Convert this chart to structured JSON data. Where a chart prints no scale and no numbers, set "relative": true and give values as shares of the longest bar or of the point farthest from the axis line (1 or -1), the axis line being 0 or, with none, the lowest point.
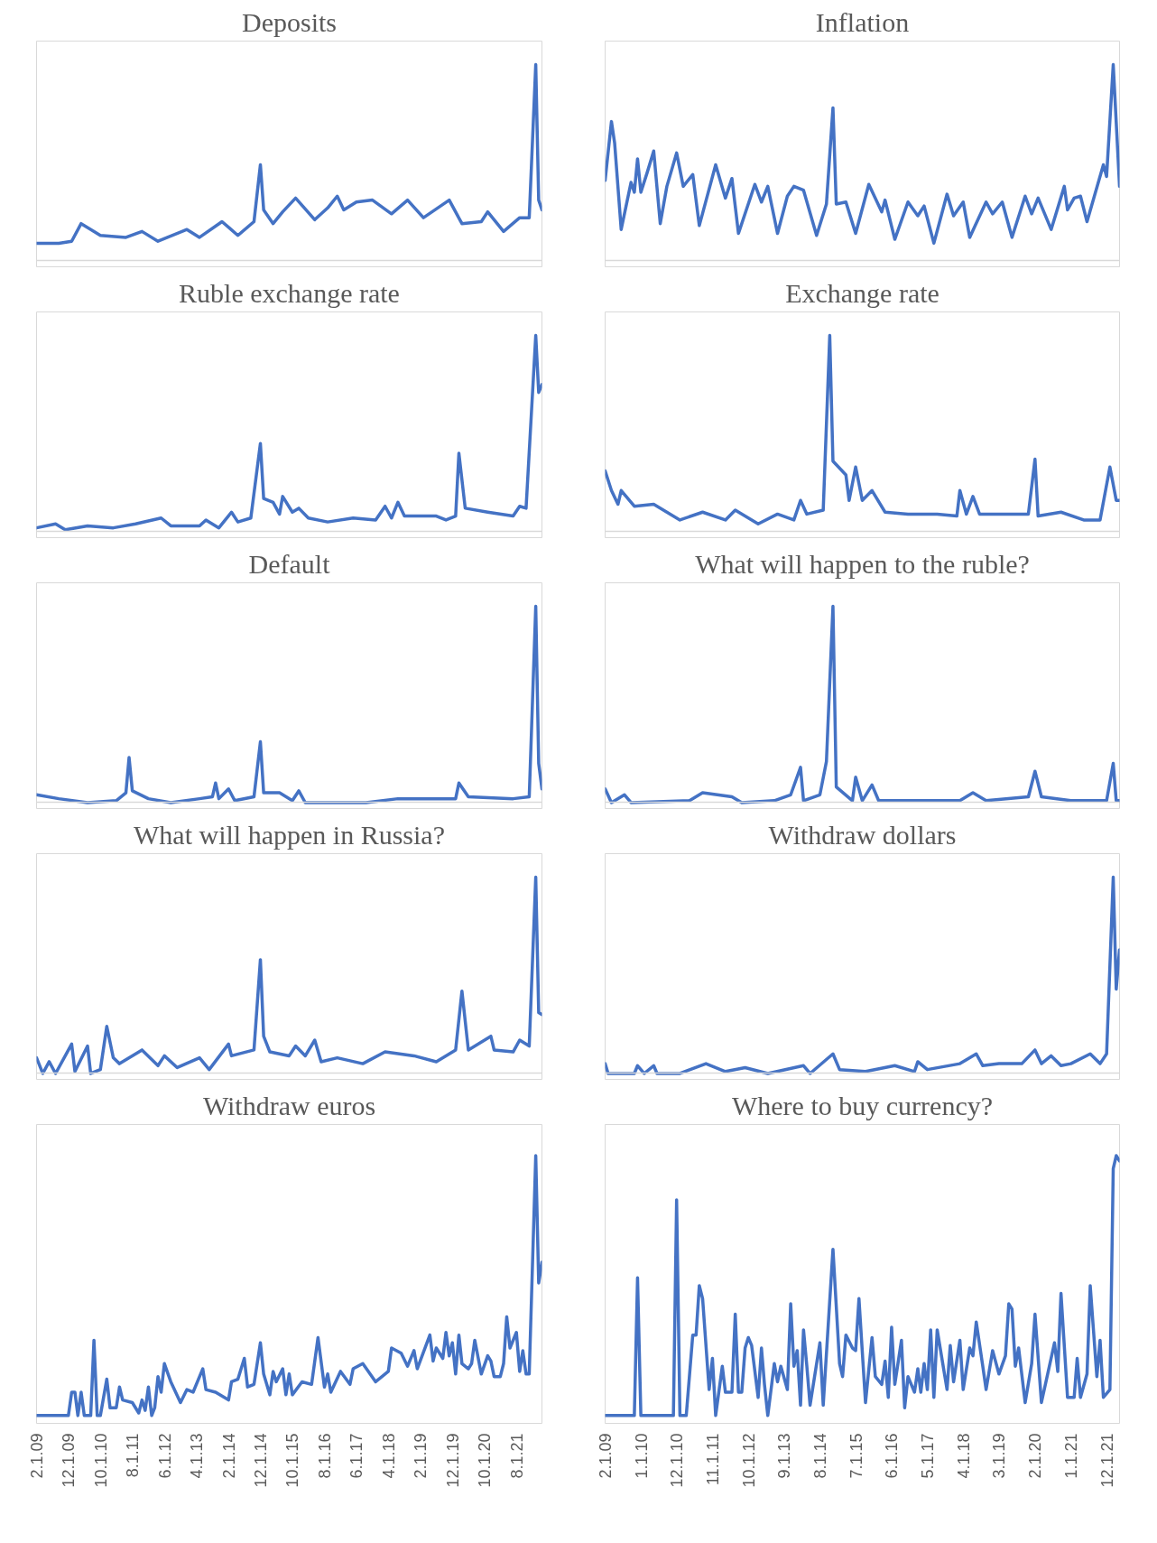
{
  "chart_data": [
    {
      "type": "line",
      "title": "Deposits",
      "relative": true,
      "tick_labels": false,
      "xlim": [
        "2009-02",
        "2022-04"
      ],
      "x": [
        "2009-02",
        "2009-09",
        "2010-01",
        "2010-04",
        "2010-10",
        "2011-06",
        "2011-11",
        "2012-04",
        "2013-01",
        "2013-05",
        "2013-12",
        "2014-05",
        "2014-10",
        "2014-12",
        "2015-01",
        "2015-04",
        "2015-07",
        "2015-11",
        "2016-05",
        "2016-09",
        "2016-12",
        "2017-02",
        "2017-06",
        "2017-11",
        "2018-05",
        "2018-10",
        "2019-03",
        "2019-11",
        "2020-03",
        "2020-09",
        "2020-11",
        "2021-04",
        "2021-09",
        "2021-12",
        "2022-02",
        "2022-03",
        "2022-04"
      ],
      "series": [
        {
          "color": "#4472c4",
          "values": [
            0.09,
            0.09,
            0.1,
            0.19,
            0.13,
            0.12,
            0.15,
            0.1,
            0.16,
            0.12,
            0.2,
            0.13,
            0.2,
            0.49,
            0.26,
            0.19,
            0.25,
            0.32,
            0.21,
            0.27,
            0.33,
            0.26,
            0.3,
            0.31,
            0.24,
            0.31,
            0.22,
            0.31,
            0.19,
            0.2,
            0.25,
            0.15,
            0.22,
            0.22,
            1.0,
            0.31,
            0.26
          ]
        }
      ]
    },
    {
      "type": "line",
      "title": "Inflation",
      "relative": true,
      "tick_labels": false,
      "xlim": [
        "2009-02",
        "2022-04"
      ],
      "x": [
        "2009-02",
        "2009-04",
        "2009-05",
        "2009-07",
        "2009-10",
        "2009-11",
        "2009-12",
        "2010-01",
        "2010-03",
        "2010-05",
        "2010-07",
        "2010-09",
        "2010-12",
        "2011-02",
        "2011-05",
        "2011-07",
        "2011-12",
        "2012-03",
        "2012-05",
        "2012-07",
        "2012-12",
        "2013-02",
        "2013-04",
        "2013-07",
        "2013-10",
        "2013-12",
        "2014-03",
        "2014-07",
        "2014-10",
        "2014-12",
        "2015-01",
        "2015-04",
        "2015-07",
        "2015-11",
        "2016-03",
        "2016-04",
        "2016-07",
        "2016-11",
        "2017-02",
        "2017-04",
        "2017-07",
        "2017-11",
        "2018-01",
        "2018-04",
        "2018-06",
        "2018-11",
        "2019-01",
        "2019-04",
        "2019-07",
        "2019-11",
        "2020-01",
        "2020-03",
        "2020-07",
        "2020-11",
        "2020-12",
        "2021-02",
        "2021-04",
        "2021-06",
        "2021-11",
        "2021-12",
        "2022-02",
        "2022-04"
      ],
      "series": [
        {
          "color": "#4472c4",
          "values": [
            0.41,
            0.71,
            0.6,
            0.16,
            0.4,
            0.35,
            0.52,
            0.35,
            0.45,
            0.56,
            0.19,
            0.38,
            0.55,
            0.38,
            0.44,
            0.18,
            0.49,
            0.32,
            0.42,
            0.14,
            0.39,
            0.3,
            0.38,
            0.14,
            0.33,
            0.38,
            0.36,
            0.13,
            0.29,
            0.78,
            0.29,
            0.3,
            0.14,
            0.39,
            0.25,
            0.31,
            0.11,
            0.3,
            0.23,
            0.28,
            0.09,
            0.34,
            0.23,
            0.3,
            0.12,
            0.3,
            0.24,
            0.3,
            0.12,
            0.33,
            0.24,
            0.32,
            0.16,
            0.38,
            0.26,
            0.32,
            0.33,
            0.2,
            0.49,
            0.43,
            1.0,
            0.38
          ]
        }
      ]
    },
    {
      "type": "line",
      "title": "Ruble exchange rate",
      "relative": true,
      "tick_labels": false,
      "xlim": [
        "2009-02",
        "2022-04"
      ],
      "x": [
        "2009-02",
        "2009-08",
        "2009-11",
        "2010-06",
        "2011-02",
        "2011-09",
        "2012-05",
        "2012-08",
        "2013-05",
        "2013-07",
        "2013-11",
        "2014-03",
        "2014-05",
        "2014-09",
        "2014-12",
        "2015-01",
        "2015-04",
        "2015-06",
        "2015-07",
        "2015-10",
        "2015-12",
        "2016-03",
        "2016-09",
        "2017-05",
        "2017-12",
        "2018-03",
        "2018-05",
        "2018-07",
        "2018-09",
        "2019-07",
        "2019-10",
        "2020-01",
        "2020-02",
        "2020-04",
        "2020-11",
        "2021-07",
        "2021-09",
        "2021-11",
        "2022-02",
        "2022-03",
        "2022-04"
      ],
      "series": [
        {
          "color": "#4472c4",
          "values": [
            0.02,
            0.04,
            0.01,
            0.03,
            0.02,
            0.04,
            0.07,
            0.03,
            0.03,
            0.06,
            0.02,
            0.1,
            0.05,
            0.07,
            0.45,
            0.17,
            0.15,
            0.09,
            0.18,
            0.1,
            0.12,
            0.07,
            0.05,
            0.07,
            0.06,
            0.13,
            0.07,
            0.15,
            0.08,
            0.08,
            0.06,
            0.08,
            0.4,
            0.12,
            0.1,
            0.08,
            0.13,
            0.12,
            1.0,
            0.71,
            0.75
          ]
        }
      ]
    },
    {
      "type": "line",
      "title": "Exchange rate",
      "relative": true,
      "tick_labels": false,
      "xlim": [
        "2009-02",
        "2022-04"
      ],
      "x": [
        "2009-02",
        "2009-04",
        "2009-06",
        "2009-07",
        "2009-11",
        "2010-05",
        "2011-01",
        "2011-08",
        "2012-03",
        "2012-06",
        "2013-01",
        "2013-07",
        "2013-12",
        "2014-02",
        "2014-04",
        "2014-09",
        "2014-11",
        "2014-12",
        "2015-04",
        "2015-05",
        "2015-07",
        "2015-09",
        "2015-12",
        "2016-04",
        "2016-11",
        "2017-08",
        "2018-02",
        "2018-03",
        "2018-05",
        "2018-07",
        "2018-09",
        "2019-07",
        "2019-12",
        "2020-02",
        "2020-03",
        "2020-10",
        "2021-05",
        "2021-10",
        "2022-01",
        "2022-03",
        "2022-04"
      ],
      "series": [
        {
          "color": "#4472c4",
          "values": [
            0.31,
            0.21,
            0.14,
            0.21,
            0.13,
            0.14,
            0.06,
            0.1,
            0.06,
            0.11,
            0.04,
            0.09,
            0.06,
            0.16,
            0.09,
            0.11,
            1.0,
            0.36,
            0.29,
            0.16,
            0.33,
            0.16,
            0.21,
            0.1,
            0.09,
            0.09,
            0.08,
            0.21,
            0.09,
            0.18,
            0.09,
            0.09,
            0.09,
            0.37,
            0.08,
            0.1,
            0.06,
            0.06,
            0.33,
            0.16,
            0.16
          ]
        }
      ]
    },
    {
      "type": "line",
      "title": "Default",
      "relative": true,
      "tick_labels": false,
      "xlim": [
        "2009-02",
        "2022-04"
      ],
      "x": [
        "2009-02",
        "2009-09",
        "2010-06",
        "2011-03",
        "2011-06",
        "2011-07",
        "2011-08",
        "2012-01",
        "2012-08",
        "2013-05",
        "2013-09",
        "2013-10",
        "2013-11",
        "2014-02",
        "2014-04",
        "2014-10",
        "2014-12",
        "2015-01",
        "2015-06",
        "2015-10",
        "2015-12",
        "2016-02",
        "2017-09",
        "2018-07",
        "2020-01",
        "2020-02",
        "2020-05",
        "2021-07",
        "2021-12",
        "2022-02",
        "2022-03",
        "2022-04"
      ],
      "series": [
        {
          "color": "#4472c4",
          "values": [
            0.04,
            0.02,
            0.0,
            0.01,
            0.05,
            0.23,
            0.06,
            0.02,
            0.0,
            0.02,
            0.03,
            0.1,
            0.02,
            0.07,
            0.01,
            0.03,
            0.31,
            0.05,
            0.05,
            0.01,
            0.06,
            0.0,
            0.0,
            0.02,
            0.02,
            0.1,
            0.03,
            0.02,
            0.03,
            1.0,
            0.2,
            0.07
          ]
        }
      ]
    },
    {
      "type": "line",
      "title": "What will happen to the ruble?",
      "relative": true,
      "tick_labels": false,
      "xlim": [
        "2009-02",
        "2022-04"
      ],
      "x": [
        "2009-02",
        "2009-04",
        "2009-08",
        "2009-10",
        "2011-04",
        "2011-08",
        "2012-05",
        "2012-08",
        "2013-06",
        "2013-11",
        "2014-02",
        "2014-03",
        "2014-08",
        "2014-10",
        "2014-12",
        "2015-01",
        "2015-06",
        "2015-07",
        "2015-09",
        "2015-12",
        "2016-02",
        "2018-03",
        "2018-07",
        "2018-11",
        "2019-12",
        "2020-02",
        "2020-04",
        "2021-01",
        "2021-12",
        "2022-02",
        "2022-03",
        "2022-04"
      ],
      "series": [
        {
          "color": "#4472c4",
          "values": [
            0.07,
            0.0,
            0.04,
            0.0,
            0.01,
            0.05,
            0.03,
            0.0,
            0.01,
            0.04,
            0.18,
            0.01,
            0.04,
            0.21,
            1.0,
            0.08,
            0.01,
            0.13,
            0.01,
            0.09,
            0.01,
            0.01,
            0.05,
            0.01,
            0.03,
            0.16,
            0.03,
            0.01,
            0.01,
            0.2,
            0.01,
            0.01
          ]
        }
      ]
    },
    {
      "type": "line",
      "title": "What will happen in Russia?",
      "relative": true,
      "tick_labels": false,
      "xlim": [
        "2009-02",
        "2022-04"
      ],
      "x": [
        "2009-02",
        "2009-04",
        "2009-06",
        "2009-08",
        "2009-11",
        "2010-01",
        "2010-02",
        "2010-06",
        "2010-07",
        "2010-10",
        "2010-12",
        "2011-02",
        "2011-04",
        "2011-11",
        "2012-04",
        "2012-06",
        "2012-10",
        "2013-05",
        "2013-08",
        "2014-02",
        "2014-03",
        "2014-10",
        "2014-12",
        "2015-01",
        "2015-03",
        "2015-09",
        "2015-11",
        "2016-02",
        "2016-05",
        "2016-07",
        "2016-12",
        "2017-08",
        "2018-03",
        "2018-12",
        "2019-07",
        "2020-01",
        "2020-03",
        "2020-05",
        "2020-12",
        "2021-01",
        "2021-07",
        "2021-09",
        "2021-12",
        "2022-02",
        "2022-03",
        "2022-04"
      ],
      "series": [
        {
          "color": "#4472c4",
          "values": [
            0.08,
            0.0,
            0.06,
            0.0,
            0.09,
            0.15,
            0.01,
            0.14,
            0.0,
            0.02,
            0.24,
            0.08,
            0.05,
            0.12,
            0.04,
            0.09,
            0.03,
            0.08,
            0.02,
            0.15,
            0.09,
            0.12,
            0.58,
            0.19,
            0.11,
            0.09,
            0.14,
            0.09,
            0.17,
            0.06,
            0.08,
            0.05,
            0.11,
            0.09,
            0.06,
            0.12,
            0.42,
            0.12,
            0.19,
            0.12,
            0.11,
            0.17,
            0.14,
            1.0,
            0.31,
            0.3
          ]
        }
      ]
    },
    {
      "type": "line",
      "title": "Withdraw dollars",
      "relative": true,
      "tick_labels": false,
      "xlim": [
        "2009-02",
        "2022-04"
      ],
      "x": [
        "2009-02",
        "2009-03",
        "2009-11",
        "2009-12",
        "2010-02",
        "2010-05",
        "2010-06",
        "2011-01",
        "2011-09",
        "2012-03",
        "2012-09",
        "2013-04",
        "2014-03",
        "2014-05",
        "2014-12",
        "2015-02",
        "2015-10",
        "2016-07",
        "2017-01",
        "2017-02",
        "2017-05",
        "2018-03",
        "2018-05",
        "2018-08",
        "2018-10",
        "2019-03",
        "2019-10",
        "2020-02",
        "2020-04",
        "2020-07",
        "2020-10",
        "2021-01",
        "2021-07",
        "2021-10",
        "2021-12",
        "2022-02",
        "2022-03",
        "2022-04"
      ],
      "series": [
        {
          "color": "#4472c4",
          "values": [
            0.05,
            0.0,
            0.0,
            0.04,
            0.0,
            0.04,
            0.0,
            0.0,
            0.05,
            0.01,
            0.03,
            0.0,
            0.04,
            0.0,
            0.1,
            0.02,
            0.01,
            0.04,
            0.01,
            0.06,
            0.02,
            0.05,
            0.07,
            0.1,
            0.04,
            0.05,
            0.05,
            0.12,
            0.05,
            0.09,
            0.04,
            0.05,
            0.1,
            0.05,
            0.1,
            1.0,
            0.43,
            0.63
          ]
        }
      ]
    },
    {
      "type": "line",
      "title": "Withdraw euros",
      "relative": true,
      "tick_labels": "x",
      "xlim": [
        "2009-02",
        "2022-04"
      ],
      "xticks": [
        {
          "value": "2009-02",
          "label": "2.1.09"
        },
        {
          "value": "2009-12",
          "label": "12.1.09"
        },
        {
          "value": "2010-10",
          "label": "10.1.10"
        },
        {
          "value": "2011-08",
          "label": "8.1.11"
        },
        {
          "value": "2012-06",
          "label": "6.1.12"
        },
        {
          "value": "2013-04",
          "label": "4.1.13"
        },
        {
          "value": "2014-02",
          "label": "2.1.14"
        },
        {
          "value": "2014-12",
          "label": "12.1.14"
        },
        {
          "value": "2015-10",
          "label": "10.1.15"
        },
        {
          "value": "2016-08",
          "label": "8.1.16"
        },
        {
          "value": "2017-06",
          "label": "6.1.17"
        },
        {
          "value": "2018-04",
          "label": "4.1.18"
        },
        {
          "value": "2019-02",
          "label": "2.1.19"
        },
        {
          "value": "2019-12",
          "label": "12.1.19"
        },
        {
          "value": "2020-10",
          "label": "10.1.20"
        },
        {
          "value": "2021-08",
          "label": "8.1.21"
        }
      ],
      "x": [
        "2009-02",
        "2009-12",
        "2010-01",
        "2010-02",
        "2010-03",
        "2010-04",
        "2010-05",
        "2010-07",
        "2010-08",
        "2010-09",
        "2010-10",
        "2010-12",
        "2011-01",
        "2011-03",
        "2011-04",
        "2011-05",
        "2011-08",
        "2011-10",
        "2011-11",
        "2011-12",
        "2012-01",
        "2012-02",
        "2012-03",
        "2012-04",
        "2012-05",
        "2012-06",
        "2012-08",
        "2012-11",
        "2013-01",
        "2013-03",
        "2013-06",
        "2013-07",
        "2013-10",
        "2014-02",
        "2014-03",
        "2014-05",
        "2014-07",
        "2014-08",
        "2014-10",
        "2014-12",
        "2015-01",
        "2015-03",
        "2015-04",
        "2015-05",
        "2015-07",
        "2015-08",
        "2015-09",
        "2015-10",
        "2016-01",
        "2016-04",
        "2016-06",
        "2016-08",
        "2016-09",
        "2016-10",
        "2017-01",
        "2017-04",
        "2017-05",
        "2017-08",
        "2017-12",
        "2018-04",
        "2018-05",
        "2018-08",
        "2018-10",
        "2018-12",
        "2019-01",
        "2019-05",
        "2019-06",
        "2019-07",
        "2019-09",
        "2019-10",
        "2019-11",
        "2019-12",
        "2020-01",
        "2020-02",
        "2020-03",
        "2020-05",
        "2020-06",
        "2020-07",
        "2020-09",
        "2020-11",
        "2020-12",
        "2021-01",
        "2021-03",
        "2021-04",
        "2021-05",
        "2021-06",
        "2021-08",
        "2021-09",
        "2021-10",
        "2021-11",
        "2021-12",
        "2022-02",
        "2022-03",
        "2022-04"
      ],
      "series": [
        {
          "color": "#4472c4",
          "values": [
            0.0,
            0.0,
            0.09,
            0.09,
            0.0,
            0.09,
            0.0,
            0.0,
            0.29,
            0.0,
            0.0,
            0.14,
            0.03,
            0.03,
            0.11,
            0.06,
            0.05,
            0.01,
            0.06,
            0.02,
            0.11,
            0.0,
            0.03,
            0.15,
            0.09,
            0.2,
            0.13,
            0.05,
            0.1,
            0.09,
            0.18,
            0.1,
            0.09,
            0.06,
            0.13,
            0.14,
            0.22,
            0.11,
            0.12,
            0.28,
            0.16,
            0.08,
            0.17,
            0.13,
            0.18,
            0.08,
            0.16,
            0.08,
            0.13,
            0.12,
            0.3,
            0.11,
            0.16,
            0.09,
            0.17,
            0.12,
            0.18,
            0.2,
            0.13,
            0.17,
            0.26,
            0.24,
            0.19,
            0.25,
            0.18,
            0.31,
            0.21,
            0.26,
            0.22,
            0.32,
            0.23,
            0.28,
            0.16,
            0.31,
            0.2,
            0.18,
            0.2,
            0.29,
            0.16,
            0.23,
            0.21,
            0.15,
            0.15,
            0.2,
            0.38,
            0.26,
            0.32,
            0.17,
            0.25,
            0.16,
            0.16,
            1.0,
            0.51,
            0.59
          ]
        }
      ]
    },
    {
      "type": "line",
      "title": "Where to buy currency?",
      "relative": true,
      "tick_labels": "x",
      "xlim": [
        "2009-02",
        "2022-04"
      ],
      "xticks": [
        {
          "value": "2009-02",
          "label": "2.1.09"
        },
        {
          "value": "2010-01",
          "label": "1.1.10"
        },
        {
          "value": "2010-12",
          "label": "12.1.10"
        },
        {
          "value": "2011-11",
          "label": "11.1.11"
        },
        {
          "value": "2012-10",
          "label": "10.1.12"
        },
        {
          "value": "2013-09",
          "label": "9.1.13"
        },
        {
          "value": "2014-08",
          "label": "8.1.14"
        },
        {
          "value": "2015-07",
          "label": "7.1.15"
        },
        {
          "value": "2016-06",
          "label": "6.1.16"
        },
        {
          "value": "2017-05",
          "label": "5.1.17"
        },
        {
          "value": "2018-04",
          "label": "4.1.18"
        },
        {
          "value": "2019-03",
          "label": "3.1.19"
        },
        {
          "value": "2020-02",
          "label": "2.1.20"
        },
        {
          "value": "2021-01",
          "label": "1.1.21"
        },
        {
          "value": "2021-12",
          "label": "12.1.21"
        }
      ],
      "x": [
        "2009-02",
        "2009-11",
        "2009-12",
        "2010-01",
        "2010-11",
        "2010-12",
        "2011-01",
        "2011-03",
        "2011-05",
        "2011-06",
        "2011-07",
        "2011-08",
        "2011-10",
        "2011-11",
        "2011-12",
        "2012-02",
        "2012-03",
        "2012-05",
        "2012-06",
        "2012-07",
        "2012-08",
        "2012-09",
        "2012-10",
        "2012-11",
        "2013-01",
        "2013-02",
        "2013-03",
        "2013-04",
        "2013-06",
        "2013-07",
        "2013-08",
        "2013-10",
        "2013-11",
        "2013-12",
        "2014-01",
        "2014-02",
        "2014-03",
        "2014-04",
        "2014-05",
        "2014-08",
        "2014-09",
        "2014-12",
        "2015-02",
        "2015-03",
        "2015-04",
        "2015-06",
        "2015-07",
        "2015-08",
        "2015-10",
        "2015-12",
        "2016-01",
        "2016-03",
        "2016-04",
        "2016-05",
        "2016-06",
        "2016-07",
        "2016-09",
        "2016-10",
        "2016-11",
        "2017-01",
        "2017-02",
        "2017-03",
        "2017-04",
        "2017-05",
        "2017-06",
        "2017-07",
        "2017-08",
        "2017-11",
        "2017-12",
        "2018-01",
        "2018-03",
        "2018-04",
        "2018-06",
        "2018-07",
        "2018-08",
        "2018-10",
        "2018-11",
        "2019-01",
        "2019-03",
        "2019-05",
        "2019-06",
        "2019-07",
        "2019-08",
        "2019-09",
        "2019-11",
        "2020-01",
        "2020-02",
        "2020-04",
        "2020-08",
        "2020-09",
        "2020-10",
        "2020-12",
        "2021-02",
        "2021-03",
        "2021-04",
        "2021-06",
        "2021-07",
        "2021-09",
        "2021-10",
        "2021-11",
        "2022-01",
        "2022-02",
        "2022-03",
        "2022-04"
      ],
      "series": [
        {
          "color": "#4472c4",
          "values": [
            0,
            0,
            0.53,
            0,
            0,
            0.83,
            0,
            0,
            0.31,
            0.31,
            0.5,
            0.45,
            0.1,
            0.22,
            0,
            0.19,
            0.09,
            0.09,
            0.39,
            0.09,
            0.09,
            0.26,
            0.3,
            0.27,
            0.07,
            0.26,
            0.12,
            0.0,
            0.2,
            0.13,
            0.19,
            0.1,
            0.43,
            0.19,
            0.25,
            0.04,
            0.33,
            0.19,
            0.04,
            0.28,
            0.04,
            0.64,
            0.2,
            0.15,
            0.31,
            0.26,
            0.25,
            0.45,
            0.05,
            0.3,
            0.15,
            0.12,
            0.21,
            0.07,
            0.34,
            0.12,
            0.29,
            0.03,
            0.15,
            0.09,
            0.18,
            0.09,
            0.2,
            0.1,
            0.33,
            0.07,
            0.33,
            0.1,
            0.27,
            0.13,
            0.29,
            0.1,
            0.26,
            0.23,
            0.36,
            0.19,
            0.1,
            0.25,
            0.16,
            0.23,
            0.43,
            0.41,
            0.19,
            0.26,
            0.05,
            0.2,
            0.39,
            0.05,
            0.28,
            0.17,
            0.47,
            0.07,
            0.07,
            0.22,
            0.07,
            0.16,
            0.5,
            0.15,
            0.29,
            0.07,
            0.1,
            0.95,
            1.0,
            0.98
          ]
        }
      ]
    }
  ]
}
